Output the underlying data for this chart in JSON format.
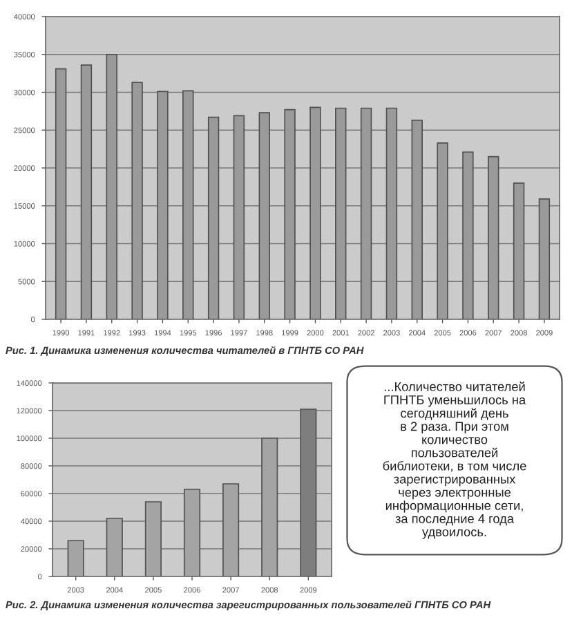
{
  "chart_data": [
    {
      "type": "bar",
      "title": "Рис. 1. Динамика изменения количества читателей в ГПНТБ СО РАН",
      "categories": [
        "1990",
        "1991",
        "1992",
        "1993",
        "1994",
        "1995",
        "1996",
        "1997",
        "1998",
        "1999",
        "2000",
        "2001",
        "2002",
        "2003",
        "2004",
        "2005",
        "2006",
        "2007",
        "2008",
        "2009"
      ],
      "values": [
        33100,
        33600,
        35000,
        31300,
        30100,
        30200,
        26700,
        26900,
        27300,
        27700,
        28000,
        27900,
        27900,
        27900,
        26300,
        23300,
        22100,
        21500,
        18000,
        15900
      ],
      "color": "#9a9a9a",
      "ylim": [
        0,
        40000
      ],
      "yticks": [
        0,
        5000,
        10000,
        15000,
        20000,
        25000,
        30000,
        35000,
        40000
      ],
      "grid": "y"
    },
    {
      "type": "bar",
      "title": "Рис. 2. Динамика изменения количества зарегистрированных пользователей ГПНТБ СО РАН",
      "categories": [
        "2003",
        "2004",
        "2005",
        "2006",
        "2007",
        "2008",
        "2009"
      ],
      "values": [
        26000,
        42000,
        54000,
        63000,
        67000,
        100000,
        121000
      ],
      "colors": [
        "#a4a4a4",
        "#a4a4a4",
        "#a4a4a4",
        "#a4a4a4",
        "#a4a4a4",
        "#a4a4a4",
        "#7e7e7e"
      ],
      "ylim": [
        0,
        140000
      ],
      "yticks": [
        0,
        20000,
        40000,
        60000,
        80000,
        100000,
        120000,
        140000
      ],
      "grid": "y"
    },
    {
      "type": "other",
      "annotations": [
        "...Количество читателей\nГПНТБ уменьшилось на\nсегодняшний день\nв 2 раза. При этом\nколичество\nпользователей\nбиблиотеки, в том числе\nзарегистрированных\nчерез электронные\nинформационные сети,\nза последние 4 года\nудвоилось."
      ]
    }
  ]
}
